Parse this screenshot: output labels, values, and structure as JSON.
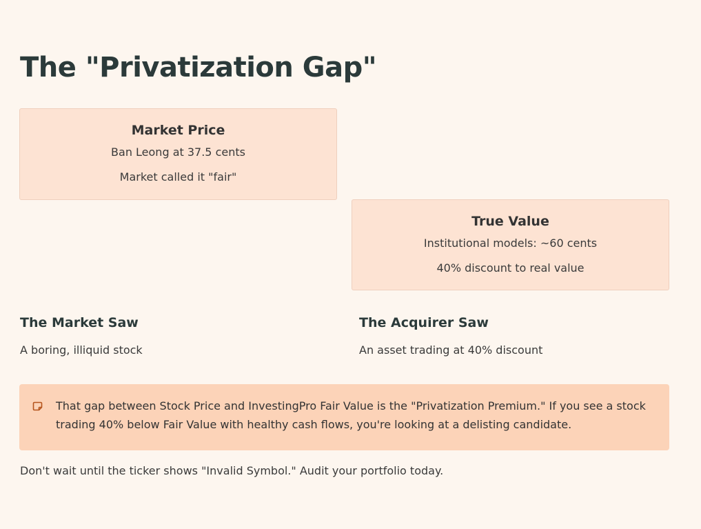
{
  "page": {
    "title": "The \"Privatization Gap\""
  },
  "market_card": {
    "title": "Market Price",
    "line1": "Ban Leong at 37.5 cents",
    "line2": "Market called it \"fair\""
  },
  "true_card": {
    "title": "True Value",
    "line1": "Institutional models: ~60 cents",
    "line2": "40% discount to real value"
  },
  "columns": [
    {
      "heading": "The Market Saw",
      "text": "A boring, illiquid stock"
    },
    {
      "heading": "The Acquirer Saw",
      "text": "An asset trading at 40% discount"
    }
  ],
  "callout": {
    "icon": "note-icon",
    "text": "That gap between Stock Price and InvestingPro Fair Value is the \"Privatization Premium.\" If you see a stock trading 40% below Fair Value with healthy cash flows, you're looking at a delisting candidate."
  },
  "footer": {
    "text": "Don't wait until the ticker shows \"Invalid Symbol.\" Audit your portfolio today."
  },
  "colors": {
    "background": "#fdf6ef",
    "card_fill": "#fde3d3",
    "callout_fill": "#fcd3b8",
    "icon_accent": "#b5541c",
    "heading": "#2b3a3a"
  }
}
